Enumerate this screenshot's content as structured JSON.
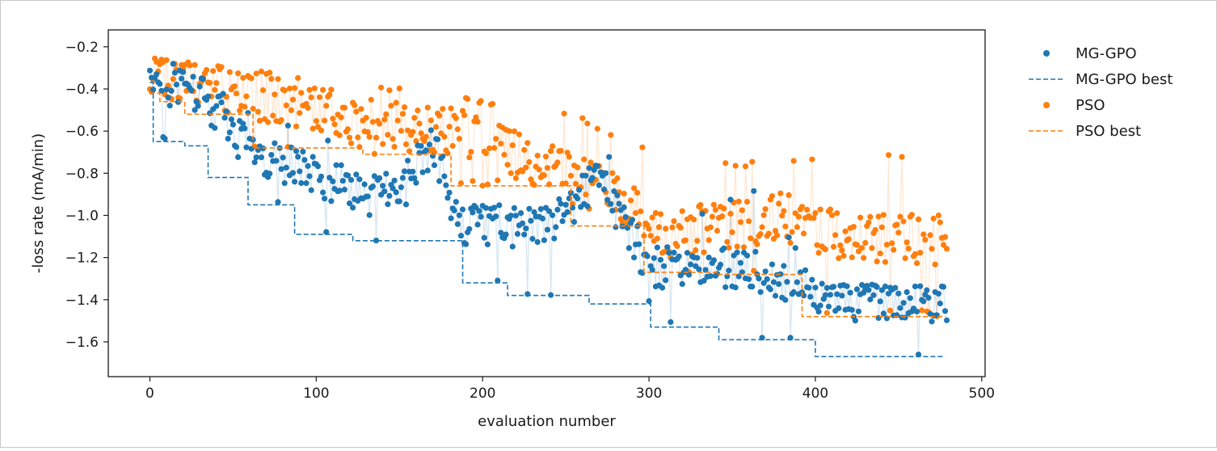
{
  "chart_data": {
    "type": "scatter",
    "title": "",
    "xlabel": "evaluation number",
    "ylabel": "-loss rate (mA/min)",
    "xlim": [
      -25,
      502
    ],
    "ylim": [
      -1.765,
      -0.12
    ],
    "xticks": [
      0,
      100,
      200,
      300,
      400,
      500
    ],
    "xtick_labels": [
      "0",
      "100",
      "200",
      "300",
      "400",
      "500"
    ],
    "yticks": [
      -0.2,
      -0.4,
      -0.6,
      -0.8,
      -1.0,
      -1.2,
      -1.4,
      -1.6
    ],
    "ytick_labels": [
      "−0.2",
      "−0.4",
      "−0.6",
      "−0.8",
      "−1.0",
      "−1.2",
      "−1.4",
      "−1.6"
    ],
    "grid": false,
    "legend_position": "outside-right",
    "n_evaluations": 480,
    "series": [
      {
        "name": "MG-GPO",
        "kind": "scatter",
        "color": "#1f77b4",
        "trend": [
          [
            0,
            -0.37
          ],
          [
            30,
            -0.42
          ],
          [
            60,
            -0.7
          ],
          [
            90,
            -0.78
          ],
          [
            130,
            -0.9
          ],
          [
            150,
            -0.9
          ],
          [
            170,
            -0.65
          ],
          [
            185,
            -1.05
          ],
          [
            240,
            -1.05
          ],
          [
            270,
            -0.82
          ],
          [
            290,
            -1.1
          ],
          [
            300,
            -1.25
          ],
          [
            360,
            -1.25
          ],
          [
            380,
            -1.32
          ],
          [
            420,
            -1.4
          ],
          [
            478,
            -1.41
          ]
        ],
        "envelope_top": [
          [
            0,
            -0.25
          ],
          [
            20,
            -0.28
          ],
          [
            60,
            -0.5
          ],
          [
            100,
            -0.62
          ],
          [
            150,
            -0.72
          ],
          [
            165,
            -0.48
          ],
          [
            175,
            -0.5
          ],
          [
            190,
            -0.95
          ],
          [
            240,
            -0.9
          ],
          [
            280,
            -0.68
          ],
          [
            300,
            -1.12
          ],
          [
            350,
            -0.9
          ],
          [
            370,
            -0.86
          ],
          [
            400,
            -1.32
          ],
          [
            478,
            -1.33
          ]
        ],
        "spread": 0.1
      },
      {
        "name": "MG-GPO best",
        "kind": "step",
        "color": "#1f77b4",
        "linestyle": "dashed",
        "x": [
          0,
          2,
          21,
          35,
          59,
          87,
          122,
          188,
          215,
          264,
          301,
          342,
          400,
          478
        ],
        "y": [
          -0.37,
          -0.65,
          -0.67,
          -0.82,
          -0.95,
          -1.09,
          -1.12,
          -1.32,
          -1.38,
          -1.42,
          -1.53,
          -1.59,
          -1.67,
          -1.67
        ]
      },
      {
        "name": "PSO",
        "kind": "scatter",
        "color": "#ff7f0e",
        "trend": [
          [
            0,
            -0.3
          ],
          [
            40,
            -0.4
          ],
          [
            80,
            -0.45
          ],
          [
            120,
            -0.55
          ],
          [
            160,
            -0.6
          ],
          [
            200,
            -0.62
          ],
          [
            230,
            -0.75
          ],
          [
            260,
            -0.85
          ],
          [
            290,
            -0.95
          ],
          [
            300,
            -1.1
          ],
          [
            350,
            -1.05
          ],
          [
            380,
            -1.0
          ],
          [
            400,
            -1.08
          ],
          [
            478,
            -1.12
          ]
        ],
        "envelope_top": [
          [
            0,
            -0.25
          ],
          [
            80,
            -0.33
          ],
          [
            160,
            -0.4
          ],
          [
            250,
            -0.5
          ],
          [
            300,
            -0.69
          ],
          [
            340,
            -0.75
          ],
          [
            400,
            -0.72
          ],
          [
            440,
            -0.7
          ],
          [
            478,
            -0.76
          ]
        ],
        "spread": 0.12
      },
      {
        "name": "PSO best",
        "kind": "step",
        "color": "#ff7f0e",
        "linestyle": "dashed",
        "x": [
          0,
          6,
          21,
          62,
          128,
          181,
          253,
          297,
          341,
          392,
          478
        ],
        "y": [
          -0.42,
          -0.46,
          -0.52,
          -0.68,
          -0.71,
          -0.86,
          -1.05,
          -1.27,
          -1.28,
          -1.48,
          -1.48
        ]
      }
    ]
  },
  "legend": {
    "items": [
      {
        "label": "MG-GPO",
        "kind": "marker",
        "color": "#1f77b4"
      },
      {
        "label": "MG-GPO best",
        "kind": "dashed",
        "color": "#1f77b4"
      },
      {
        "label": "PSO",
        "kind": "marker",
        "color": "#ff7f0e"
      },
      {
        "label": "PSO best",
        "kind": "dashed",
        "color": "#ff7f0e"
      }
    ]
  }
}
